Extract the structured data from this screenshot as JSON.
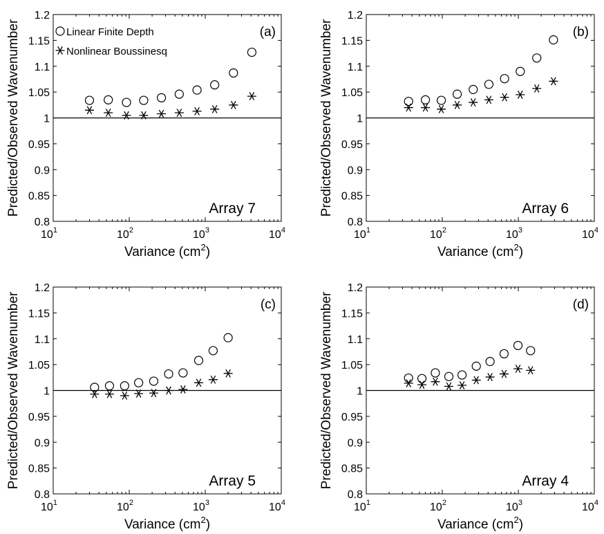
{
  "chart_data": [
    {
      "type": "scatter",
      "panel_label": "(a)",
      "annotation": "Array 7",
      "xlabel": "Variance (cm",
      "xlabel_sup": "2",
      "xlabel_close": ")",
      "ylabel": "Predicted/Observed Wavenumber",
      "xscale": "log",
      "xlim": [
        10,
        10000
      ],
      "ylim": [
        0.8,
        1.2
      ],
      "reference_line": 1,
      "grid": false,
      "legend_position": "top-left",
      "x_ticks": [
        {
          "base": "10",
          "exp": "1"
        },
        {
          "base": "10",
          "exp": "2"
        },
        {
          "base": "10",
          "exp": "3"
        },
        {
          "base": "10",
          "exp": "4"
        }
      ],
      "y_ticks": [
        "0.8",
        "0.85",
        "0.9",
        "0.95",
        "1",
        "1.05",
        "1.1",
        "1.15",
        "1.2"
      ],
      "legend": [
        "Linear Finite Depth",
        "Nonlinear Boussinesq"
      ],
      "series": [
        {
          "name": "Linear Finite Depth",
          "marker": "circle",
          "x": [
            30,
            53,
            92,
            155,
            265,
            455,
            780,
            1330,
            2350,
            4100
          ],
          "y": [
            1.034,
            1.035,
            1.03,
            1.034,
            1.039,
            1.046,
            1.054,
            1.064,
            1.087,
            1.127
          ]
        },
        {
          "name": "Nonlinear Boussinesq",
          "marker": "asterisk",
          "x": [
            30,
            53,
            92,
            155,
            265,
            455,
            780,
            1330,
            2350,
            4100
          ],
          "y": [
            1.015,
            1.01,
            1.005,
            1.005,
            1.008,
            1.01,
            1.013,
            1.017,
            1.025,
            1.042
          ]
        }
      ]
    },
    {
      "type": "scatter",
      "panel_label": "(b)",
      "annotation": "Array 6",
      "xlabel": "Variance (cm",
      "xlabel_sup": "2",
      "xlabel_close": ")",
      "ylabel": "Predicted/Observed Wavenumber",
      "xscale": "log",
      "xlim": [
        10,
        10000
      ],
      "ylim": [
        0.8,
        1.2
      ],
      "reference_line": 1,
      "grid": false,
      "x_ticks": [
        {
          "base": "10",
          "exp": "1"
        },
        {
          "base": "10",
          "exp": "2"
        },
        {
          "base": "10",
          "exp": "3"
        },
        {
          "base": "10",
          "exp": "4"
        }
      ],
      "y_ticks": [
        "0.8",
        "0.85",
        "0.9",
        "0.95",
        "1",
        "1.05",
        "1.1",
        "1.15",
        "1.2"
      ],
      "series": [
        {
          "name": "Linear Finite Depth",
          "marker": "circle",
          "x": [
            36,
            60,
            97,
            157,
            255,
            410,
            660,
            1060,
            1750,
            2900
          ],
          "y": [
            1.032,
            1.035,
            1.034,
            1.046,
            1.055,
            1.065,
            1.076,
            1.09,
            1.116,
            1.151
          ]
        },
        {
          "name": "Nonlinear Boussinesq",
          "marker": "asterisk",
          "x": [
            36,
            60,
            97,
            157,
            255,
            410,
            660,
            1060,
            1750,
            2900
          ],
          "y": [
            1.02,
            1.02,
            1.017,
            1.025,
            1.03,
            1.035,
            1.04,
            1.045,
            1.057,
            1.071
          ]
        }
      ]
    },
    {
      "type": "scatter",
      "panel_label": "(c)",
      "annotation": "Array 5",
      "xlabel": "Variance (cm",
      "xlabel_sup": "2",
      "xlabel_close": ")",
      "ylabel": "Predicted/Observed Wavenumber",
      "xscale": "log",
      "xlim": [
        10,
        10000
      ],
      "ylim": [
        0.8,
        1.2
      ],
      "reference_line": 1,
      "grid": false,
      "x_ticks": [
        {
          "base": "10",
          "exp": "1"
        },
        {
          "base": "10",
          "exp": "2"
        },
        {
          "base": "10",
          "exp": "3"
        },
        {
          "base": "10",
          "exp": "4"
        }
      ],
      "y_ticks": [
        "0.8",
        "0.85",
        "0.9",
        "0.95",
        "1",
        "1.05",
        "1.1",
        "1.15",
        "1.2"
      ],
      "series": [
        {
          "name": "Linear Finite Depth",
          "marker": "circle",
          "x": [
            35,
            55,
            87,
            133,
            210,
            330,
            510,
            820,
            1270,
            2000
          ],
          "y": [
            1.006,
            1.009,
            1.009,
            1.015,
            1.018,
            1.032,
            1.034,
            1.058,
            1.077,
            1.102
          ]
        },
        {
          "name": "Nonlinear Boussinesq",
          "marker": "asterisk",
          "x": [
            35,
            55,
            87,
            133,
            210,
            330,
            510,
            820,
            1270,
            2000
          ],
          "y": [
            0.993,
            0.993,
            0.99,
            0.994,
            0.995,
            1.0,
            1.002,
            1.015,
            1.021,
            1.033
          ]
        }
      ]
    },
    {
      "type": "scatter",
      "panel_label": "(d)",
      "annotation": "Array 4",
      "xlabel": "Variance (cm",
      "xlabel_sup": "2",
      "xlabel_close": ")",
      "ylabel": "Predicted/Observed Wavenumber",
      "xscale": "log",
      "xlim": [
        10,
        10000
      ],
      "ylim": [
        0.8,
        1.2
      ],
      "reference_line": 1,
      "grid": false,
      "x_ticks": [
        {
          "base": "10",
          "exp": "1"
        },
        {
          "base": "10",
          "exp": "2"
        },
        {
          "base": "10",
          "exp": "3"
        },
        {
          "base": "10",
          "exp": "4"
        }
      ],
      "y_ticks": [
        "0.8",
        "0.85",
        "0.9",
        "0.95",
        "1",
        "1.05",
        "1.1",
        "1.15",
        "1.2"
      ],
      "series": [
        {
          "name": "Linear Finite Depth",
          "marker": "circle",
          "x": [
            36,
            54,
            81,
            122,
            182,
            280,
            425,
            650,
            990,
            1450
          ],
          "y": [
            1.024,
            1.023,
            1.034,
            1.027,
            1.03,
            1.047,
            1.056,
            1.071,
            1.087,
            1.077
          ]
        },
        {
          "name": "Nonlinear Boussinesq",
          "marker": "asterisk",
          "x": [
            36,
            54,
            81,
            122,
            182,
            280,
            425,
            650,
            990,
            1450
          ],
          "y": [
            1.014,
            1.011,
            1.017,
            1.008,
            1.01,
            1.02,
            1.026,
            1.032,
            1.042,
            1.039
          ]
        }
      ]
    }
  ]
}
